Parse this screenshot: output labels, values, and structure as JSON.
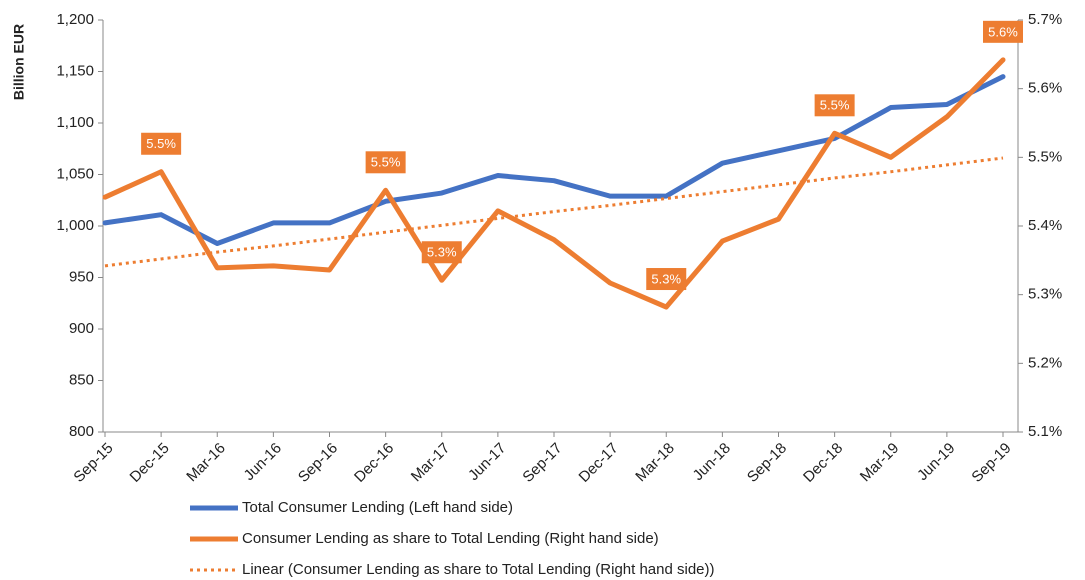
{
  "chart_data": {
    "type": "line",
    "y_label": "Billion EUR",
    "categories": [
      "Sep-15",
      "Dec-15",
      "Mar-16",
      "Jun-16",
      "Sep-16",
      "Dec-16",
      "Mar-17",
      "Jun-17",
      "Sep-17",
      "Dec-17",
      "Mar-18",
      "Jun-18",
      "Sep-18",
      "Dec-18",
      "Mar-19",
      "Jun-19",
      "Sep-19"
    ],
    "ylim": [
      800,
      1200
    ],
    "yticks": [
      {
        "value": 800,
        "label": "800"
      },
      {
        "value": 850,
        "label": "850"
      },
      {
        "value": 900,
        "label": "900"
      },
      {
        "value": 950,
        "label": "950"
      },
      {
        "value": 1000,
        "label": "1,000"
      },
      {
        "value": 1050,
        "label": "1,050"
      },
      {
        "value": 1100,
        "label": "1,100"
      },
      {
        "value": 1150,
        "label": "1,150"
      },
      {
        "value": 1200,
        "label": "1,200"
      }
    ],
    "y2lim": [
      5.1,
      5.7
    ],
    "y2ticks": [
      {
        "value": 5.1,
        "label": "5.1%"
      },
      {
        "value": 5.2,
        "label": "5.2%"
      },
      {
        "value": 5.3,
        "label": "5.3%"
      },
      {
        "value": 5.4,
        "label": "5.4%"
      },
      {
        "value": 5.5,
        "label": "5.5%"
      },
      {
        "value": 5.6,
        "label": "5.6%"
      },
      {
        "value": 5.7,
        "label": "5.7%"
      }
    ],
    "series": [
      {
        "name": "Total Consumer Lending (Left hand side)",
        "color": "#4472c4",
        "style": "solid",
        "values": [
          1003,
          1011,
          983,
          1003,
          1003,
          1024,
          1032,
          1049,
          1044,
          1029,
          1029,
          1061,
          1073,
          1085,
          1115,
          1118,
          1145
        ]
      },
      {
        "name": "Consumer Lending as share to Total Lending (Right hand side)",
        "color": "#ed7d31",
        "style": "solid",
        "axis": "y2",
        "values": [
          5.442,
          5.479,
          5.339,
          5.342,
          5.336,
          5.452,
          5.321,
          5.422,
          5.38,
          5.317,
          5.282,
          5.378,
          5.41,
          5.535,
          5.5,
          5.559,
          5.642
        ],
        "value_labels": [
          null,
          "5.5%",
          null,
          null,
          null,
          "5.5%",
          "5.3%",
          null,
          null,
          null,
          "5.3%",
          null,
          null,
          "5.5%",
          null,
          null,
          "5.6%"
        ]
      },
      {
        "name": "Linear (Consumer Lending as share to Total Lending (Right hand side))",
        "color": "#ed7d31",
        "style": "dotted",
        "axis": "y2",
        "values": [
          5.342,
          5.352,
          5.362,
          5.371,
          5.381,
          5.391,
          5.401,
          5.411,
          5.421,
          5.43,
          5.44,
          5.45,
          5.46,
          5.47,
          5.479,
          5.489,
          5.499
        ]
      }
    ]
  }
}
